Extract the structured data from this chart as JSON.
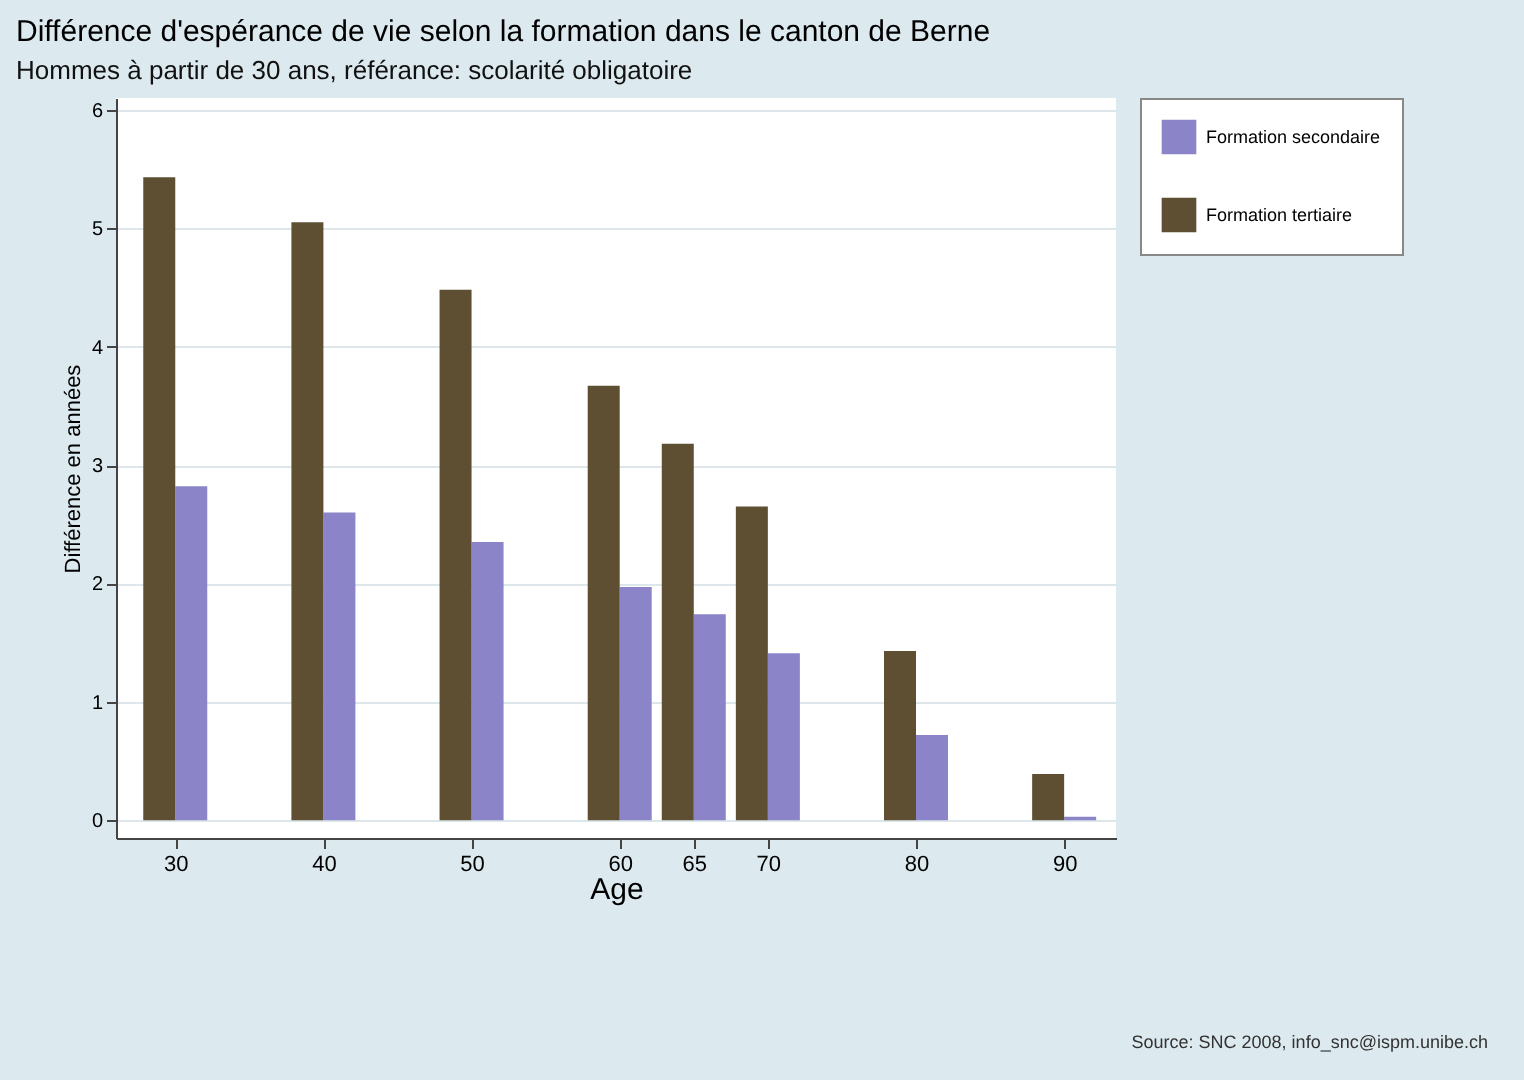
{
  "chart_data": {
    "type": "bar",
    "title": "Différence d'espérance de vie selon la formation dans le canton de Berne",
    "subtitle": "Hommes à partir de 30 ans, référance: scolarité obligatoire",
    "xlabel": "Age",
    "ylabel": "Différence en années",
    "annotations": [
      "Source: SNC 2008, info_snc@ispm.unibe.ch"
    ],
    "x": [
      30,
      40,
      50,
      60,
      65,
      70,
      80,
      90
    ],
    "series": [
      {
        "name": "Formation secondaire",
        "color": "#8b84c8",
        "values": [
          2.82,
          2.6,
          2.35,
          1.97,
          1.74,
          1.41,
          0.72,
          0.03
        ]
      },
      {
        "name": "Formation tertiaire",
        "color": "#5e4f33",
        "values": [
          5.43,
          5.05,
          4.48,
          3.67,
          3.18,
          2.65,
          1.43,
          0.39
        ]
      }
    ],
    "xlim": [
      26,
      93.5
    ],
    "xticks": [
      30,
      40,
      50,
      60,
      65,
      70,
      80,
      90
    ],
    "ylim": [
      -0.15,
      6.1
    ],
    "yticks": [
      0,
      1,
      2,
      3,
      4,
      5,
      6
    ],
    "grid": "y",
    "legend": "right"
  }
}
